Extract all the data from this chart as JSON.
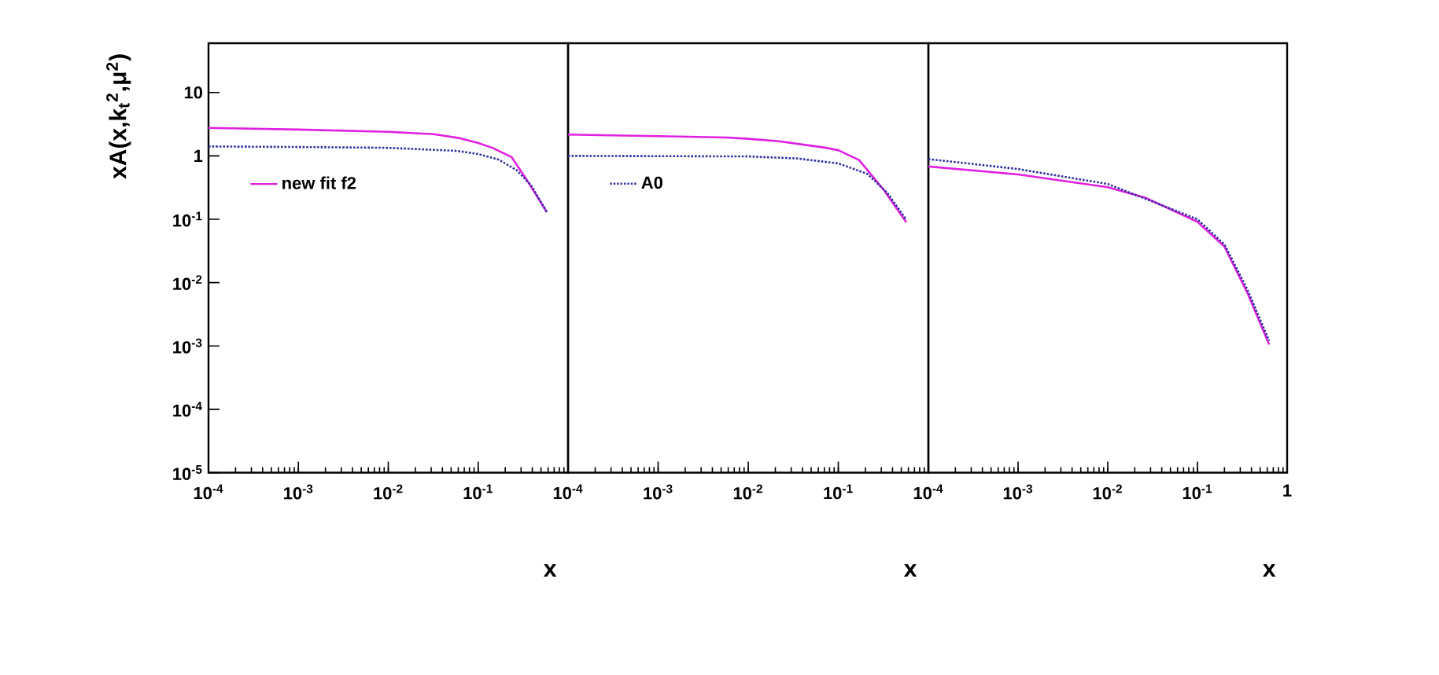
{
  "chart_data": [
    {
      "type": "line",
      "log": "xy",
      "grid": false,
      "legend": "top left",
      "xlabel": "x",
      "ylabel": "xA(x,k$_{t}$$^{2}$,μ$^{2}$)",
      "xlim": [
        0.0001,
        1
      ],
      "ylim": [
        1e-05,
        60
      ],
      "xticks": [
        {
          "value": 0.0001,
          "label": "10$^{-4}$"
        },
        {
          "value": 0.001,
          "label": "10$^{-3}$"
        },
        {
          "value": 0.01,
          "label": "10$^{-2}$"
        },
        {
          "value": 0.1,
          "label": "10$^{-1}$"
        },
        {
          "value": 1,
          "label": null
        }
      ],
      "yticks": [
        {
          "value": 10,
          "label": "10"
        },
        {
          "value": 1,
          "label": "1"
        },
        {
          "value": 0.1,
          "label": "10$^{-1}$"
        },
        {
          "value": 0.01,
          "label": "10$^{-2}$"
        },
        {
          "value": 0.001,
          "label": "10$^{-3}$"
        },
        {
          "value": 0.0001,
          "label": "10$^{-4}$"
        },
        {
          "value": 1e-05,
          "label": "10$^{-5}$"
        }
      ],
      "series": [
        {
          "name": "new fit f2",
          "color": "#e020e0",
          "line_style": "solid",
          "x": [
            0.0001,
            0.001,
            0.01,
            0.032,
            0.063,
            0.1,
            0.144,
            0.235,
            0.35,
            0.58
          ],
          "values": [
            2.77,
            2.6,
            2.4,
            2.2,
            1.9,
            1.6,
            1.34,
            0.96,
            0.41,
            0.13
          ]
        },
        {
          "color": "#3030a0",
          "line_style": "dotted",
          "x": [
            0.0001,
            0.001,
            0.01,
            0.058,
            0.1,
            0.17,
            0.27,
            0.39,
            0.58
          ],
          "values": [
            1.41,
            1.38,
            1.34,
            1.2,
            1.07,
            0.87,
            0.59,
            0.34,
            0.13
          ]
        }
      ]
    },
    {
      "type": "line",
      "log": "xy",
      "grid": false,
      "legend": "top left",
      "tick_labels": "x",
      "xlabel": "x",
      "xlim": [
        0.0001,
        1
      ],
      "ylim": [
        1e-05,
        60
      ],
      "xticks": [
        {
          "value": 0.0001,
          "label": "10$^{-4}$"
        },
        {
          "value": 0.001,
          "label": "10$^{-3}$"
        },
        {
          "value": 0.01,
          "label": "10$^{-2}$"
        },
        {
          "value": 0.1,
          "label": "10$^{-1}$"
        },
        {
          "value": 1,
          "label": null
        }
      ],
      "series": [
        {
          "color": "#e020e0",
          "line_style": "solid",
          "x": [
            0.0001,
            0.001,
            0.0058,
            0.01,
            0.022,
            0.071,
            0.1,
            0.17,
            0.32,
            0.57
          ],
          "values": [
            2.17,
            2.05,
            1.95,
            1.86,
            1.7,
            1.35,
            1.23,
            0.86,
            0.29,
            0.089
          ]
        },
        {
          "name": "A0",
          "color": "#3030a0",
          "line_style": "dotted",
          "x": [
            0.0001,
            0.01,
            0.035,
            0.1,
            0.21,
            0.35,
            0.57
          ],
          "values": [
            1.0,
            0.98,
            0.91,
            0.76,
            0.52,
            0.26,
            0.098
          ]
        }
      ]
    },
    {
      "type": "line",
      "log": "xy",
      "grid": false,
      "tick_labels": "x",
      "xlabel": "x",
      "xlim": [
        0.0001,
        1
      ],
      "ylim": [
        1e-05,
        60
      ],
      "xticks": [
        {
          "value": 0.0001,
          "label": "10$^{-4}$"
        },
        {
          "value": 0.001,
          "label": "10$^{-3}$"
        },
        {
          "value": 0.01,
          "label": "10$^{-2}$"
        },
        {
          "value": 0.1,
          "label": "10$^{-1}$"
        },
        {
          "value": 1,
          "label": "1"
        }
      ],
      "series": [
        {
          "color": "#e020e0",
          "line_style": "solid",
          "x": [
            0.0001,
            0.001,
            0.01,
            0.026,
            0.1,
            0.2,
            0.36,
            0.63
          ],
          "values": [
            0.68,
            0.51,
            0.32,
            0.22,
            0.091,
            0.037,
            0.0069,
            0.00105
          ]
        },
        {
          "color": "#3030a0",
          "line_style": "dotted",
          "x": [
            0.0001,
            0.001,
            0.01,
            0.1,
            0.2,
            0.36,
            0.63
          ],
          "values": [
            0.89,
            0.62,
            0.36,
            0.1,
            0.04,
            0.0078,
            0.0012
          ]
        }
      ]
    }
  ]
}
